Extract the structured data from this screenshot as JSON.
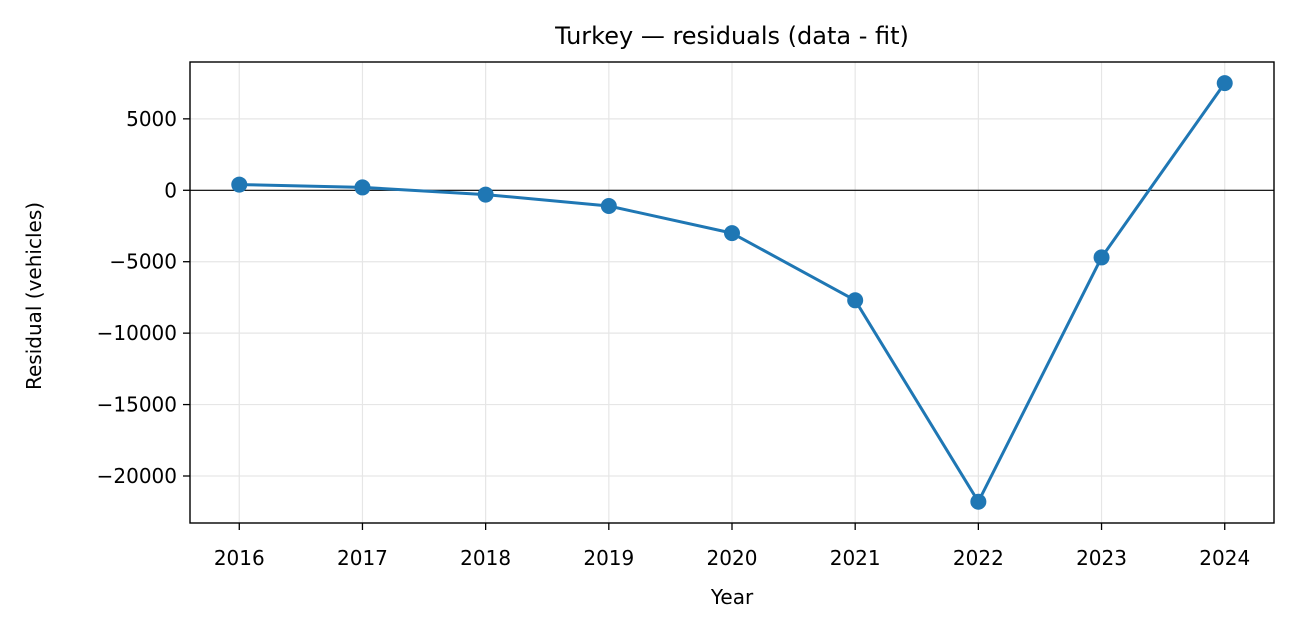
{
  "chart_data": {
    "type": "line",
    "title": "Turkey — residuals (data - fit)",
    "xlabel": "Year",
    "ylabel": "Residual (vehicles)",
    "x": [
      2016,
      2017,
      2018,
      2019,
      2020,
      2021,
      2022,
      2023,
      2024
    ],
    "series": [
      {
        "values": [
          400,
          200,
          -300,
          -1100,
          -3000,
          -7700,
          -21800,
          -4700,
          7500
        ]
      }
    ],
    "x_ticks": [
      2016,
      2017,
      2018,
      2019,
      2020,
      2021,
      2022,
      2023,
      2024
    ],
    "x_tick_labels": [
      "2016",
      "2017",
      "2018",
      "2019",
      "2020",
      "2021",
      "2022",
      "2023",
      "2024"
    ],
    "y_ticks": [
      5000,
      0,
      -5000,
      -10000,
      -15000,
      -20000
    ],
    "y_tick_labels": [
      "5000",
      "0",
      "−5000",
      "−10000",
      "−15000",
      "−20000"
    ],
    "xlim": [
      2015.6,
      2024.4
    ],
    "ylim": [
      -23290,
      8980
    ],
    "reference_line_y": 0,
    "grid": true,
    "colors": {
      "series": "#1f77b4",
      "grid": "#e6e6e6",
      "axis": "#000000",
      "reference_line": "#000000"
    }
  }
}
